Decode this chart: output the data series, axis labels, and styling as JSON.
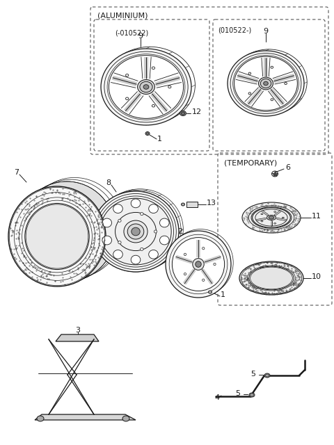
{
  "bg_color": "#ffffff",
  "line_color": "#1a1a1a",
  "labels": {
    "aluminium_box": "(ALUMINIUM)",
    "left_sub": "(-010522)",
    "right_sub": "(010522-)",
    "temporary_box": "(TEMPORARY)"
  },
  "dashed_box_color": "#555555",
  "font_size_label": 7.5,
  "font_size_number": 8
}
